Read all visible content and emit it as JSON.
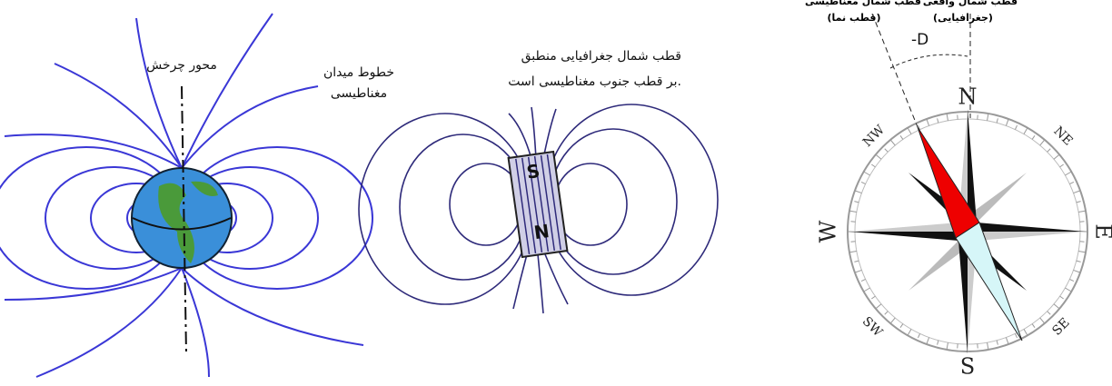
{
  "earth": {
    "axis_label": "محور چرخش",
    "field_label": [
      "خطوط میدان",
      "مغناطیسی"
    ]
  },
  "magnet": {
    "note": [
      "قطب شمال جغرافیایی منطبق",
      "بر قطب جنوب مغناطیسی است."
    ],
    "south": "S",
    "north": "N"
  },
  "compass": {
    "magnetic_north": [
      "قطب شمال مغناطیسی",
      "(قطب نما)"
    ],
    "true_north": [
      "قطب شمال واقعی",
      "(جغرافیایی)"
    ],
    "declination": "-D",
    "directions": {
      "n": "N",
      "s": "S",
      "e": "E",
      "w": "W",
      "ne": "NE",
      "nw": "NW",
      "se": "SE",
      "sw": "SW"
    }
  }
}
